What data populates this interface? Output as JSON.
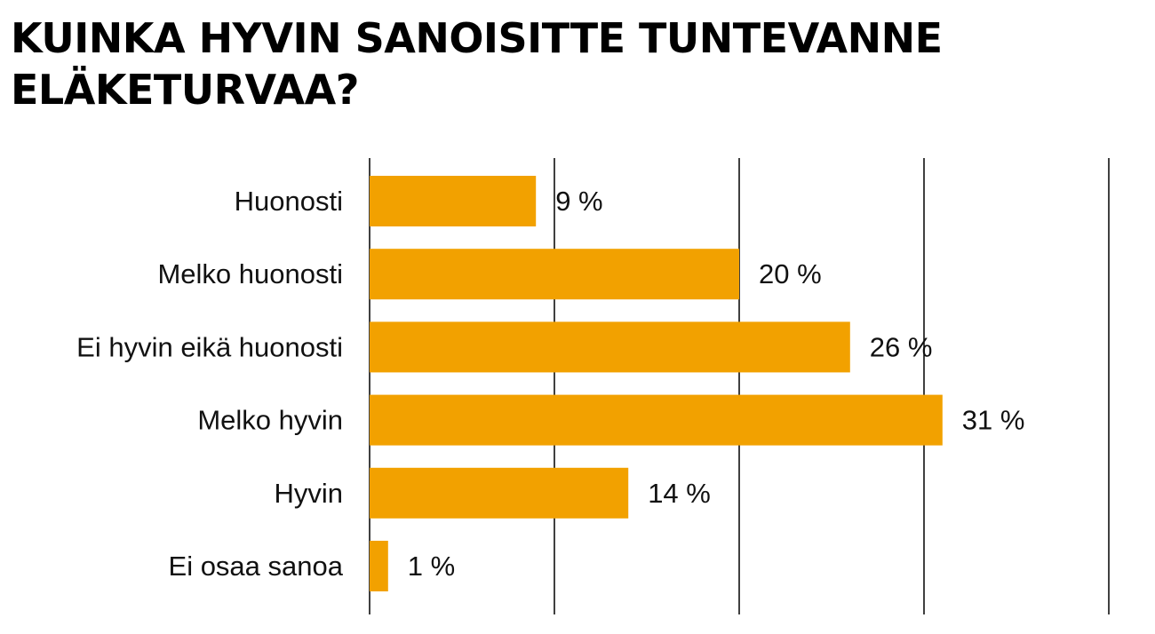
{
  "chart_data": {
    "type": "bar",
    "orientation": "horizontal",
    "title_lines": [
      "KUINKA HYVIN SANOISITTE TUNTEVANNE",
      "ELÄKETURVAA?"
    ],
    "categories": [
      "Huonosti",
      "Melko huonosti",
      "Ei hyvin eikä huonosti",
      "Melko hyvin",
      "Hyvin",
      "Ei osaa sanoa"
    ],
    "values": [
      9,
      20,
      26,
      31,
      14,
      1
    ],
    "value_labels": [
      "9 %",
      "20 %",
      "26 %",
      "31 %",
      "14 %",
      "1 %"
    ],
    "unit": "%",
    "xlim": [
      0,
      40
    ],
    "gridlines": [
      0,
      10,
      20,
      30,
      40
    ],
    "grid": true,
    "bar_color": "#f2a100",
    "gridline_color": "#000000"
  }
}
